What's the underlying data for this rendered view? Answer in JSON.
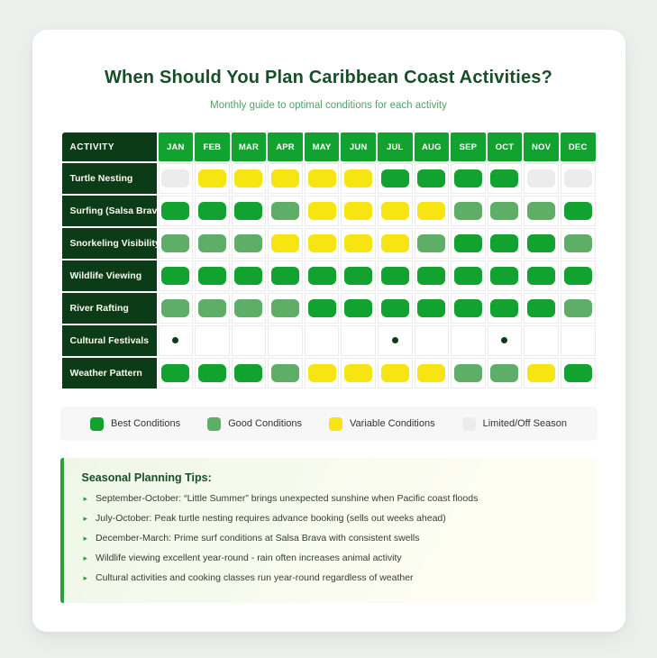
{
  "page": {
    "title": "When Should You Plan Caribbean Coast Activities?",
    "subtitle": "Monthly guide to optimal conditions for each activity"
  },
  "chart_data": {
    "type": "heatmap",
    "title": "When Should You Plan Caribbean Coast Activities?",
    "subtitle": "Monthly guide to optimal conditions for each activity",
    "activity_header": "ACTIVITY",
    "months": [
      "JAN",
      "FEB",
      "MAR",
      "APR",
      "MAY",
      "JUN",
      "JUL",
      "AUG",
      "SEP",
      "OCT",
      "NOV",
      "DEC"
    ],
    "value_scale": [
      "best",
      "good",
      "variable",
      "limited",
      "dot",
      "none"
    ],
    "rows": [
      {
        "activity": "Turtle Nesting",
        "values": [
          "limited",
          "variable",
          "variable",
          "variable",
          "variable",
          "variable",
          "best",
          "best",
          "best",
          "best",
          "limited",
          "limited"
        ]
      },
      {
        "activity": "Surfing (Salsa Brava)",
        "values": [
          "best",
          "best",
          "best",
          "good",
          "variable",
          "variable",
          "variable",
          "variable",
          "good",
          "good",
          "good",
          "best"
        ]
      },
      {
        "activity": "Snorkeling Visibility",
        "values": [
          "good",
          "good",
          "good",
          "variable",
          "variable",
          "variable",
          "variable",
          "good",
          "best",
          "best",
          "best",
          "good"
        ]
      },
      {
        "activity": "Wildlife Viewing",
        "values": [
          "best",
          "best",
          "best",
          "best",
          "best",
          "best",
          "best",
          "best",
          "best",
          "best",
          "best",
          "best"
        ]
      },
      {
        "activity": "River Rafting",
        "values": [
          "good",
          "good",
          "good",
          "good",
          "best",
          "best",
          "best",
          "best",
          "best",
          "best",
          "best",
          "good"
        ]
      },
      {
        "activity": "Cultural Festivals",
        "values": [
          "dot",
          "none",
          "none",
          "none",
          "none",
          "none",
          "dot",
          "none",
          "none",
          "dot",
          "none",
          "none"
        ]
      },
      {
        "activity": "Weather Pattern",
        "values": [
          "best",
          "best",
          "best",
          "good",
          "variable",
          "variable",
          "variable",
          "variable",
          "good",
          "good",
          "variable",
          "best"
        ]
      }
    ]
  },
  "legend": {
    "items": [
      {
        "key": "best",
        "label": "Best Conditions",
        "color": "#12a22f"
      },
      {
        "key": "good",
        "label": "Good Conditions",
        "color": "#5fae68"
      },
      {
        "key": "variable",
        "label": "Variable Conditions",
        "color": "#f7e511"
      },
      {
        "key": "limited",
        "label": "Limited/Off Season",
        "color": "#ececec"
      }
    ]
  },
  "tips": {
    "heading": "Seasonal Planning Tips:",
    "bullet_icon": "▸",
    "items": [
      "September-October: “Little Summer” brings unexpected sunshine when Pacific coast floods",
      "July-October: Peak turtle nesting requires advance booking (sells out weeks ahead)",
      "December-March: Prime surf conditions at Salsa Brava with consistent swells",
      "Wildlife viewing excellent year-round - rain often increases animal activity",
      "Cultural activities and cooking classes run year-round regardless of weather"
    ]
  },
  "colors": {
    "best": "#12a22f",
    "good": "#5fae68",
    "variable": "#f7e511",
    "limited": "#ececec",
    "header_green": "#12a22f",
    "label_dark": "#0b3b17",
    "dot": "#0b3b17",
    "title": "#174f28",
    "subtitle": "#55a169",
    "tip_border": "#2d9e3f"
  }
}
